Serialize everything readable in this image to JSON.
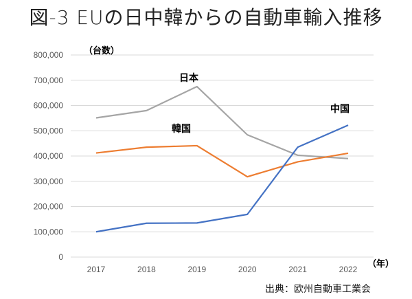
{
  "title": "図-3 EUの日中韓からの自動車輸入推移",
  "source": "出典：欧州自動車工業会",
  "chart_data": {
    "type": "line",
    "title": "図-3 EUの日中韓からの自動車輸入推移",
    "xlabel": "（年）",
    "ylabel": "（台数）",
    "x": [
      "2017",
      "2018",
      "2019",
      "2020",
      "2021",
      "2022"
    ],
    "ylim": [
      0,
      800000
    ],
    "yticks": [
      0,
      100000,
      200000,
      300000,
      400000,
      500000,
      600000,
      700000,
      800000
    ],
    "ytick_labels": [
      "0",
      "100,000",
      "200,000",
      "300,000",
      "400,000",
      "500,000",
      "600,000",
      "700,000",
      "800,000"
    ],
    "grid": true,
    "legend": "inline labels",
    "series": [
      {
        "name": "日本",
        "color": "#A5A5A5",
        "values": [
          551000,
          580000,
          675000,
          484000,
          403000,
          390000
        ]
      },
      {
        "name": "韓国",
        "color": "#ED7D31",
        "values": [
          412000,
          435000,
          441000,
          318000,
          377000,
          411000
        ]
      },
      {
        "name": "中国",
        "color": "#4472C4",
        "values": [
          100000,
          134000,
          135000,
          169000,
          435000,
          522000
        ]
      }
    ]
  }
}
